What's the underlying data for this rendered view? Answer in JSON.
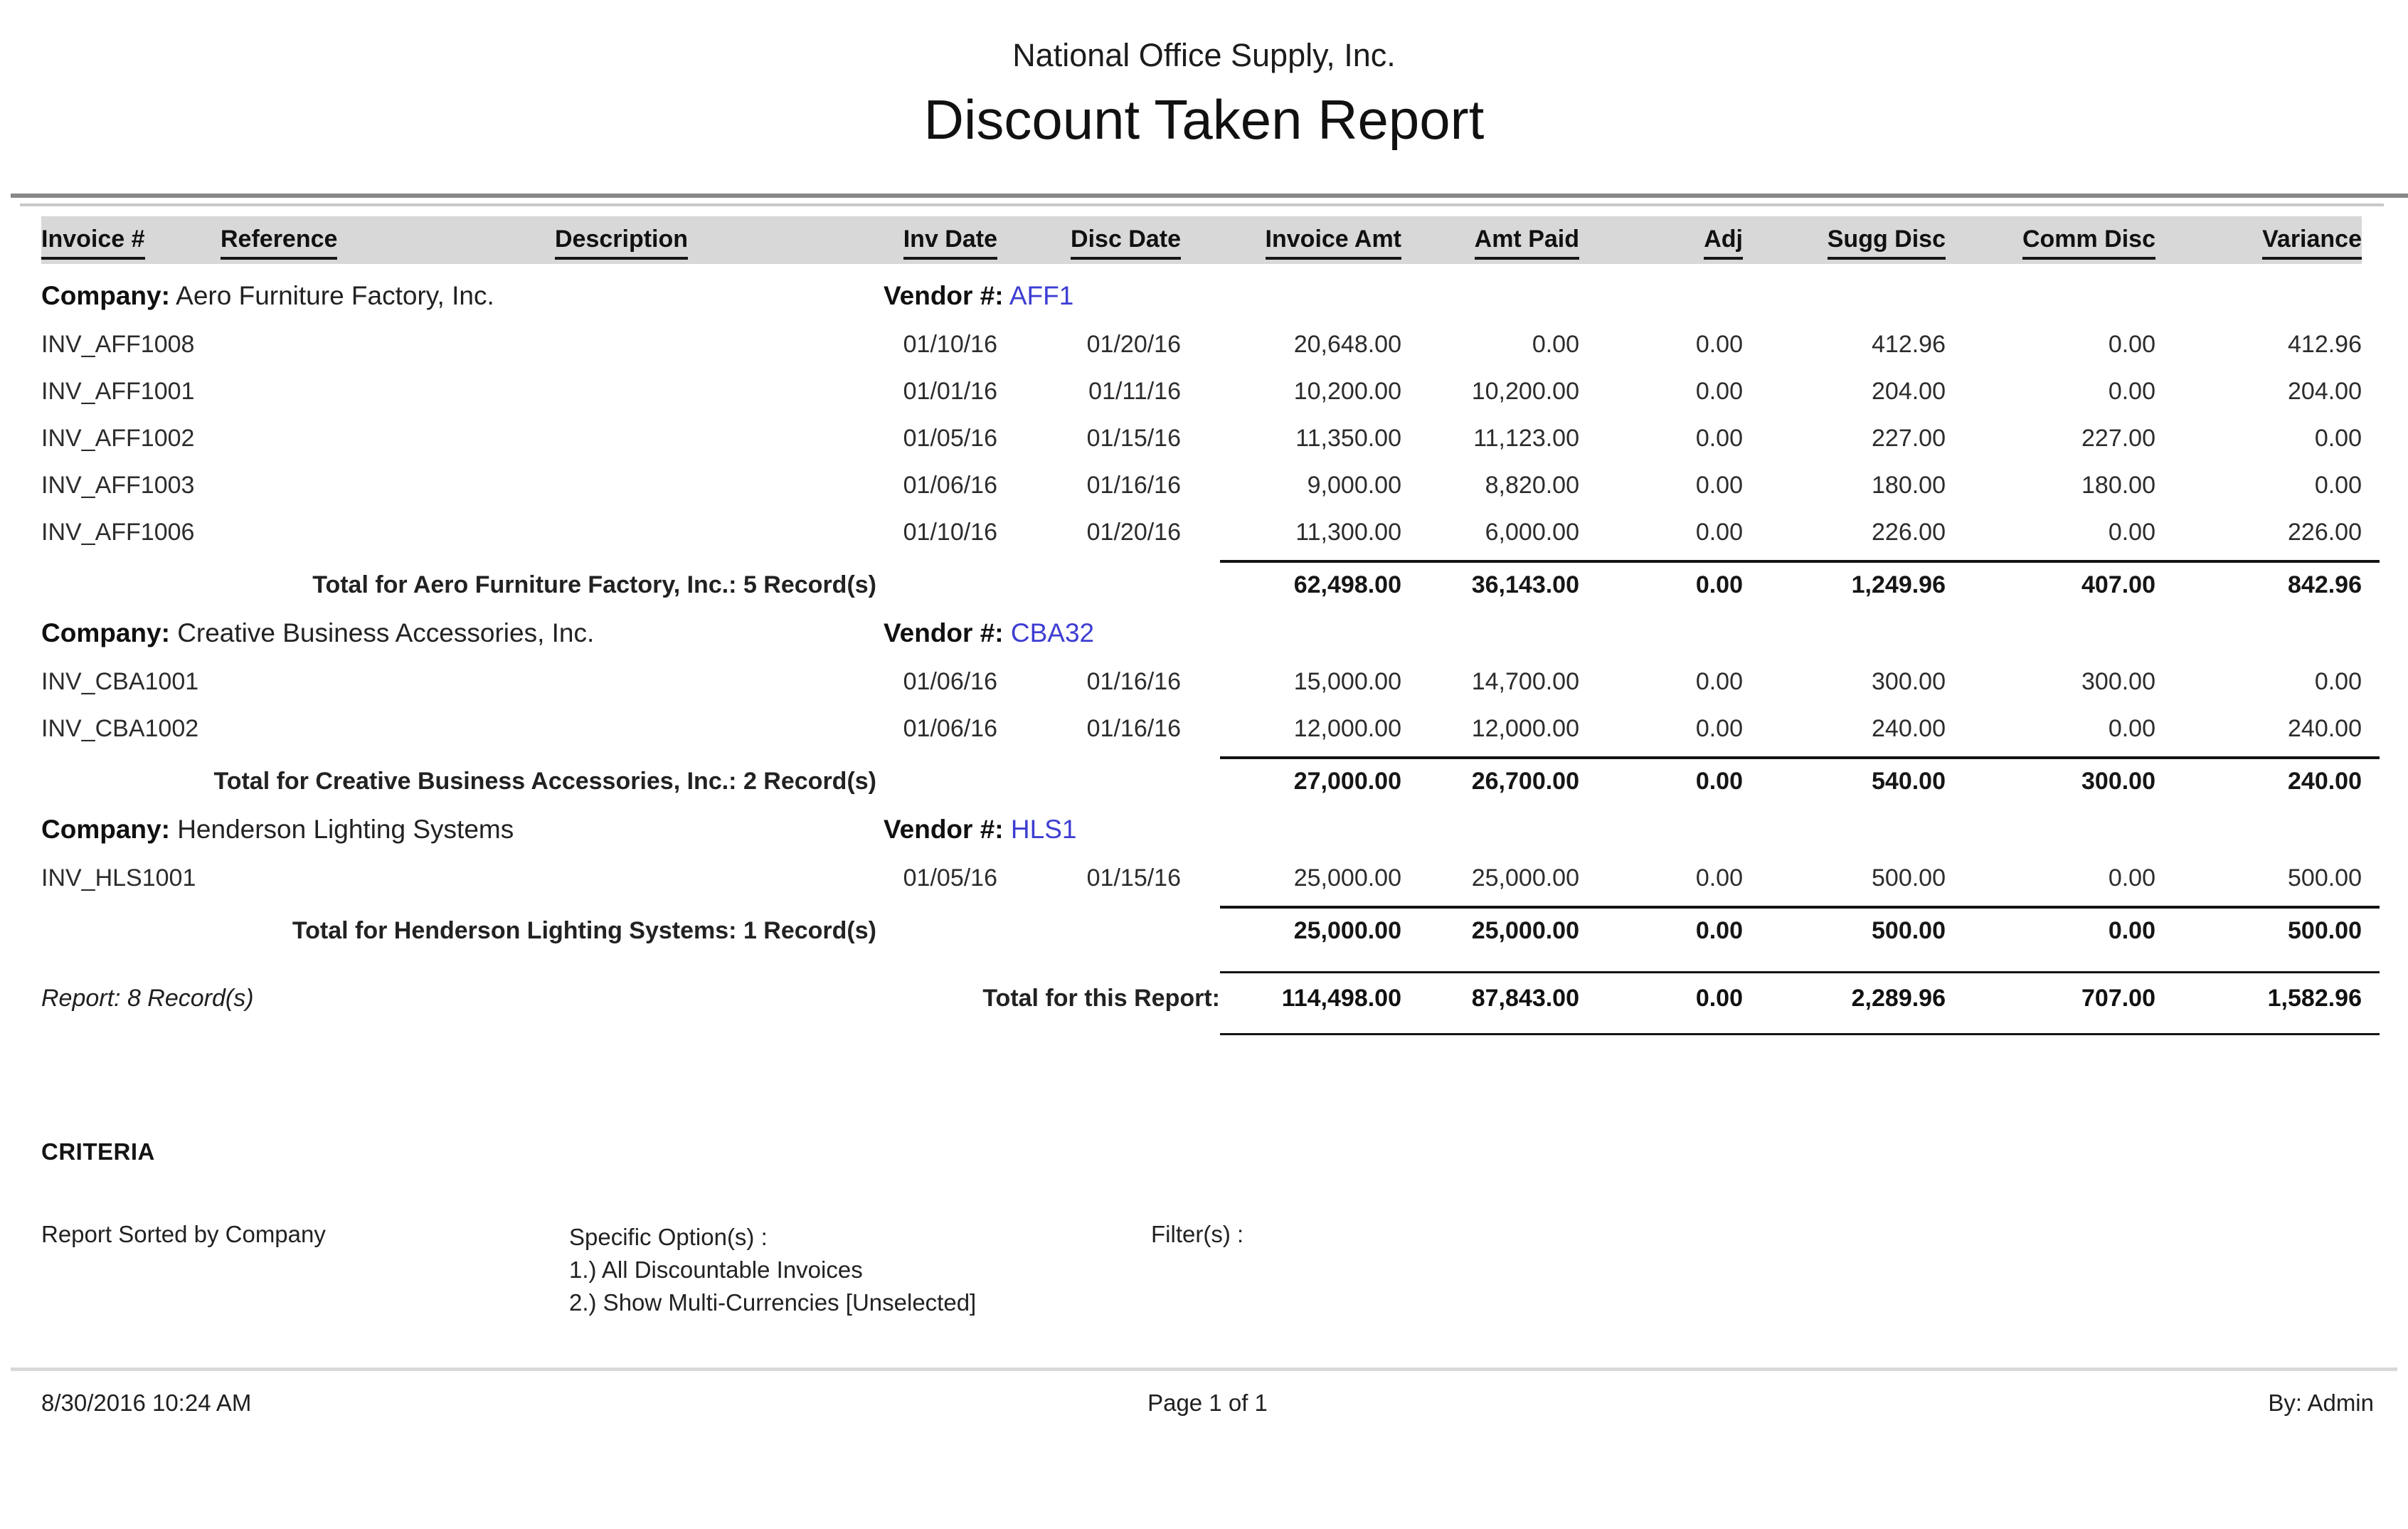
{
  "report": {
    "org_name": "National Office Supply, Inc.",
    "title": "Discount Taken Report",
    "columns": [
      "Invoice #",
      "Reference",
      "Description",
      "Inv Date",
      "Disc Date",
      "Invoice Amt",
      "Amt Paid",
      "Adj",
      "Sugg Disc",
      "Comm Disc",
      "Variance"
    ],
    "labels": {
      "company": "Company:",
      "vendor": "Vendor #:"
    },
    "groups": [
      {
        "company": "Aero Furniture Factory, Inc.",
        "vendor": "AFF1",
        "rows": [
          {
            "invoice": "INV_AFF1008",
            "reference": "",
            "description": "",
            "inv_date": "01/10/16",
            "disc_date": "01/20/16",
            "invoice_amt": "20,648.00",
            "amt_paid": "0.00",
            "adj": "0.00",
            "sugg_disc": "412.96",
            "comm_disc": "0.00",
            "variance": "412.96"
          },
          {
            "invoice": "INV_AFF1001",
            "reference": "",
            "description": "",
            "inv_date": "01/01/16",
            "disc_date": "01/11/16",
            "invoice_amt": "10,200.00",
            "amt_paid": "10,200.00",
            "adj": "0.00",
            "sugg_disc": "204.00",
            "comm_disc": "0.00",
            "variance": "204.00"
          },
          {
            "invoice": "INV_AFF1002",
            "reference": "",
            "description": "",
            "inv_date": "01/05/16",
            "disc_date": "01/15/16",
            "invoice_amt": "11,350.00",
            "amt_paid": "11,123.00",
            "adj": "0.00",
            "sugg_disc": "227.00",
            "comm_disc": "227.00",
            "variance": "0.00"
          },
          {
            "invoice": "INV_AFF1003",
            "reference": "",
            "description": "",
            "inv_date": "01/06/16",
            "disc_date": "01/16/16",
            "invoice_amt": "9,000.00",
            "amt_paid": "8,820.00",
            "adj": "0.00",
            "sugg_disc": "180.00",
            "comm_disc": "180.00",
            "variance": "0.00"
          },
          {
            "invoice": "INV_AFF1006",
            "reference": "",
            "description": "",
            "inv_date": "01/10/16",
            "disc_date": "01/20/16",
            "invoice_amt": "11,300.00",
            "amt_paid": "6,000.00",
            "adj": "0.00",
            "sugg_disc": "226.00",
            "comm_disc": "0.00",
            "variance": "226.00"
          }
        ],
        "total_label": "Total for Aero Furniture Factory, Inc.: 5 Record(s)",
        "totals": {
          "invoice_amt": "62,498.00",
          "amt_paid": "36,143.00",
          "adj": "0.00",
          "sugg_disc": "1,249.96",
          "comm_disc": "407.00",
          "variance": "842.96"
        }
      },
      {
        "company": "Creative Business Accessories, Inc.",
        "vendor": "CBA32",
        "rows": [
          {
            "invoice": "INV_CBA1001",
            "reference": "",
            "description": "",
            "inv_date": "01/06/16",
            "disc_date": "01/16/16",
            "invoice_amt": "15,000.00",
            "amt_paid": "14,700.00",
            "adj": "0.00",
            "sugg_disc": "300.00",
            "comm_disc": "300.00",
            "variance": "0.00"
          },
          {
            "invoice": "INV_CBA1002",
            "reference": "",
            "description": "",
            "inv_date": "01/06/16",
            "disc_date": "01/16/16",
            "invoice_amt": "12,000.00",
            "amt_paid": "12,000.00",
            "adj": "0.00",
            "sugg_disc": "240.00",
            "comm_disc": "0.00",
            "variance": "240.00"
          }
        ],
        "total_label": "Total for Creative Business Accessories, Inc.: 2 Record(s)",
        "totals": {
          "invoice_amt": "27,000.00",
          "amt_paid": "26,700.00",
          "adj": "0.00",
          "sugg_disc": "540.00",
          "comm_disc": "300.00",
          "variance": "240.00"
        }
      },
      {
        "company": "Henderson Lighting Systems",
        "vendor": "HLS1",
        "rows": [
          {
            "invoice": "INV_HLS1001",
            "reference": "",
            "description": "",
            "inv_date": "01/05/16",
            "disc_date": "01/15/16",
            "invoice_amt": "25,000.00",
            "amt_paid": "25,000.00",
            "adj": "0.00",
            "sugg_disc": "500.00",
            "comm_disc": "0.00",
            "variance": "500.00"
          }
        ],
        "total_label": "Total for Henderson Lighting Systems: 1 Record(s)",
        "totals": {
          "invoice_amt": "25,000.00",
          "amt_paid": "25,000.00",
          "adj": "0.00",
          "sugg_disc": "500.00",
          "comm_disc": "0.00",
          "variance": "500.00"
        }
      }
    ],
    "report_records_label": "Report: 8 Record(s)",
    "report_total_label": "Total for this Report:",
    "report_totals": {
      "invoice_amt": "114,498.00",
      "amt_paid": "87,843.00",
      "adj": "0.00",
      "sugg_disc": "2,289.96",
      "comm_disc": "707.00",
      "variance": "1,582.96"
    },
    "criteria": {
      "heading": "CRITERIA",
      "sorted_by": "Report Sorted by Company",
      "options_label": "Specific Option(s) :",
      "options": [
        "1.) All Discountable Invoices",
        "2.) Show Multi-Currencies [Unselected]"
      ],
      "filters_label": "Filter(s) :"
    },
    "footer": {
      "datetime": "8/30/2016 10:24 AM",
      "page": "Page 1 of 1",
      "by": "By: Admin"
    },
    "colors": {
      "vendor_link": "#3d3dd2",
      "header_band": "#d8d8d8",
      "rule_dark": "#878787",
      "rule_light": "#c9c9c9"
    }
  }
}
